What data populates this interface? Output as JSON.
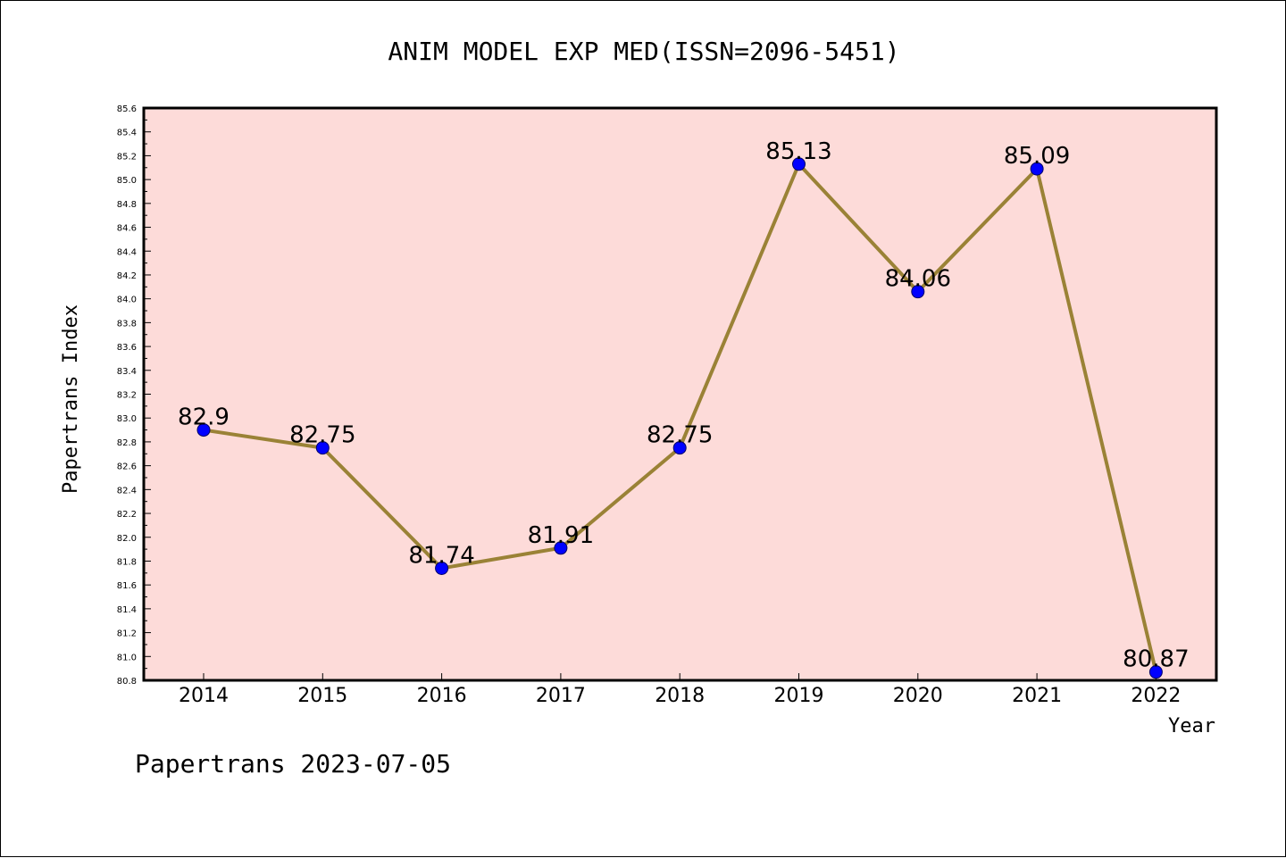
{
  "footer": "Papertrans 2023-07-05",
  "colors": {
    "plot_background": "#fddbd9",
    "line": "#9a8236",
    "marker": "#0000ff",
    "frame": "#000000"
  },
  "chart_data": {
    "type": "line",
    "title": "ANIM MODEL EXP MED(ISSN=2096-5451)",
    "xlabel": "Year",
    "ylabel": "Papertrans Index",
    "categories": [
      "2014",
      "2015",
      "2016",
      "2017",
      "2018",
      "2019",
      "2020",
      "2021",
      "2022"
    ],
    "values": [
      82.9,
      82.75,
      81.74,
      81.91,
      82.75,
      85.13,
      84.06,
      85.09,
      80.87
    ],
    "data_labels": [
      "82.9",
      "82.75",
      "81.74",
      "81.91",
      "82.75",
      "85.13",
      "84.06",
      "85.09",
      "80.87"
    ],
    "ylim": [
      80.8,
      85.6
    ],
    "yticks": [
      "80.8",
      "81.0",
      "81.2",
      "81.4",
      "81.6",
      "81.8",
      "82.0",
      "82.2",
      "82.4",
      "82.6",
      "82.8",
      "83.0",
      "83.2",
      "83.4",
      "83.6",
      "83.8",
      "84.0",
      "84.2",
      "84.4",
      "84.6",
      "84.8",
      "85.0",
      "85.2",
      "85.4",
      "85.6"
    ],
    "grid": false,
    "legend": "none"
  }
}
